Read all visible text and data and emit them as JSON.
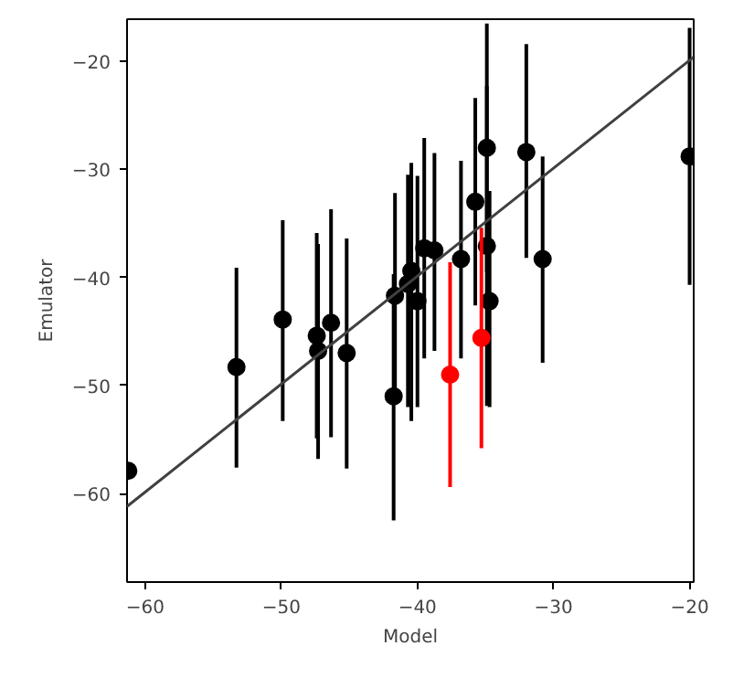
{
  "chart_data": {
    "type": "scatter",
    "xlabel": "Model",
    "ylabel": "Emulator",
    "xlim": [
      -61.34,
      -19.7
    ],
    "ylim": [
      -68.2,
      -16.1
    ],
    "xticks": [
      {
        "value": -60,
        "label": "−60"
      },
      {
        "value": -50,
        "label": "−50"
      },
      {
        "value": -40,
        "label": "−40"
      },
      {
        "value": -30,
        "label": "−30"
      },
      {
        "value": -20,
        "label": "−20"
      }
    ],
    "yticks": [
      {
        "value": -60,
        "label": "−60"
      },
      {
        "value": -50,
        "label": "−50"
      },
      {
        "value": -40,
        "label": "−40"
      },
      {
        "value": -30,
        "label": "−30"
      },
      {
        "value": -20,
        "label": "−20"
      }
    ],
    "grid": false,
    "marker": "circle",
    "series": [
      {
        "color": "#000000",
        "x": [
          -61.25,
          -53.3,
          -49.9,
          -47.4,
          -47.3,
          -46.35,
          -45.2,
          -41.75,
          -41.65,
          -40.7,
          -40.45,
          -40.0,
          -39.5,
          -38.75,
          -36.8,
          -35.75,
          -34.9,
          -34.9,
          -34.7,
          -32.0,
          -30.8,
          -20.0
        ],
        "values": [
          -57.9,
          -48.3,
          -43.9,
          -45.4,
          -46.8,
          -44.2,
          -47.0,
          -51.0,
          -41.7,
          -40.6,
          -39.4,
          -42.2,
          -37.3,
          -37.5,
          -38.3,
          -33.0,
          -28.0,
          -37.1,
          -42.2,
          -28.4,
          -38.3,
          -28.8
        ],
        "errors": [
          null,
          [
            -57.6,
            -39.1
          ],
          [
            -53.3,
            -34.7
          ],
          [
            -54.9,
            -35.9
          ],
          [
            -56.8,
            -36.9
          ],
          [
            -54.8,
            -33.7
          ],
          [
            -57.7,
            -36.4
          ],
          [
            -62.5,
            -39.7
          ],
          [
            -51.0,
            -32.2
          ],
          [
            -52.0,
            -30.5
          ],
          [
            -53.3,
            -29.4
          ],
          [
            -52.0,
            -30.6
          ],
          [
            -47.5,
            -27.1
          ],
          [
            -46.8,
            -28.5
          ],
          [
            -47.5,
            -29.2
          ],
          [
            -42.6,
            -23.4
          ],
          [
            -39.5,
            -16.5
          ],
          [
            -51.9,
            -22.3
          ],
          [
            -52.0,
            -32.0
          ],
          [
            -38.2,
            -18.4
          ],
          [
            -47.9,
            -28.8
          ],
          [
            -40.7,
            -16.9
          ]
        ]
      },
      {
        "color": "#ff0000",
        "x": [
          -37.6,
          -35.3
        ],
        "values": [
          -49.0,
          -45.6
        ],
        "errors": [
          [
            -59.4,
            -38.6
          ],
          [
            -55.8,
            -35.4
          ]
        ]
      },
      {
        "type": "line",
        "marker": "none",
        "color": "#404040",
        "x": [
          -61.34,
          -19.7
        ],
        "values": [
          -61.2,
          -19.6
        ]
      }
    ]
  }
}
